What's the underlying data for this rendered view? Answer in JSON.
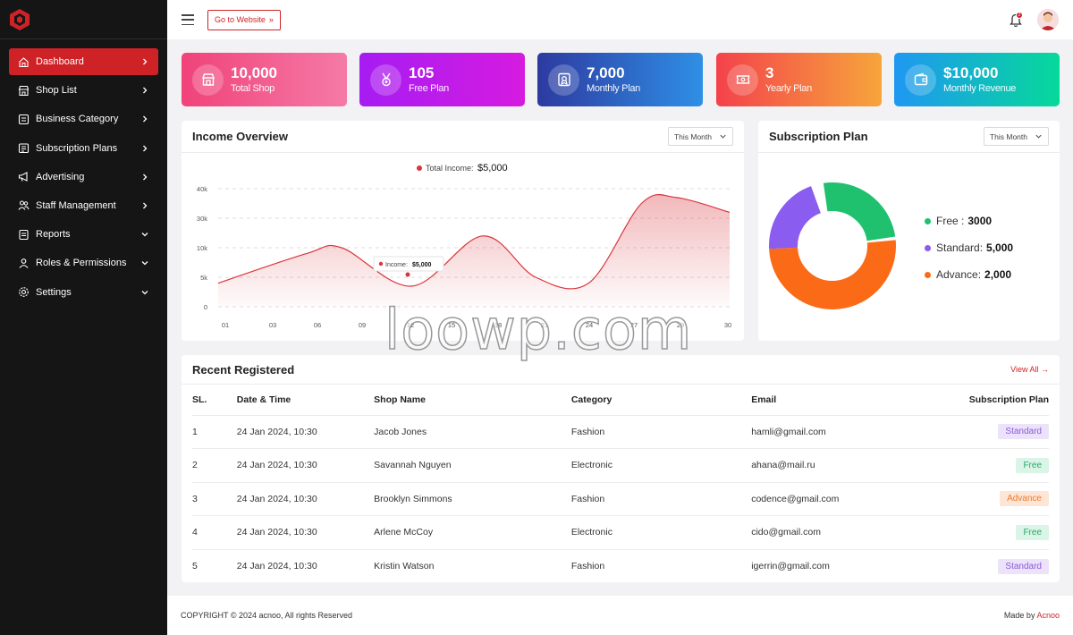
{
  "sidebar": {
    "items": [
      {
        "label": "Dashboard",
        "icon": "home-icon",
        "chevron": "right"
      },
      {
        "label": "Shop List",
        "icon": "shop-icon",
        "chevron": "right"
      },
      {
        "label": "Business Category",
        "icon": "category-icon",
        "chevron": "right"
      },
      {
        "label": "Subscription Plans",
        "icon": "subscription-icon",
        "chevron": "right"
      },
      {
        "label": "Advertising",
        "icon": "megaphone-icon",
        "chevron": "right"
      },
      {
        "label": "Staff Management",
        "icon": "staff-icon",
        "chevron": "right"
      },
      {
        "label": "Reports",
        "icon": "report-icon",
        "chevron": "down"
      },
      {
        "label": "Roles & Permissions",
        "icon": "roles-icon",
        "chevron": "down"
      },
      {
        "label": "Settings",
        "icon": "gear-icon",
        "chevron": "down"
      }
    ]
  },
  "header": {
    "goto_label": "Go to Website",
    "notification_count": "2"
  },
  "stats": [
    {
      "value": "10,000",
      "label": "Total Shop",
      "icon": "shop-icon",
      "gradient": [
        "#f0437a",
        "#f57aa6"
      ]
    },
    {
      "value": "105",
      "label": "Free Plan",
      "icon": "medal-icon",
      "gradient": [
        "#a61cf2",
        "#d61be0"
      ]
    },
    {
      "value": "7,000",
      "label": "Monthly Plan",
      "icon": "certificate-icon",
      "gradient": [
        "#2d3aa0",
        "#2f8fe6"
      ]
    },
    {
      "value": "3",
      "label": "Yearly Plan",
      "icon": "ticket-icon",
      "gradient": [
        "#f4424b",
        "#f6a53b"
      ]
    },
    {
      "value": "$10,000",
      "label": "Monthly Revenue",
      "icon": "wallet-icon",
      "gradient": [
        "#1f97f2",
        "#06d99a"
      ]
    }
  ],
  "income": {
    "title": "Income Overview",
    "period": "This Month",
    "legend_label": "Total Income:",
    "legend_value": "$5,000",
    "tooltip_label": "Income:",
    "tooltip_value": "$5,000"
  },
  "chart_data": {
    "type": "area",
    "title": "Income Overview",
    "x_ticks": [
      "01",
      "03",
      "06",
      "09",
      "12",
      "15",
      "18",
      "21",
      "24",
      "27",
      "29",
      "30"
    ],
    "y_ticks": [
      "0",
      "5k",
      "10k",
      "30k",
      "40k"
    ],
    "series": [
      {
        "name": "Total Income",
        "points": [
          [
            1,
            8
          ],
          [
            6,
            18
          ],
          [
            8,
            20
          ],
          [
            12,
            7
          ],
          [
            16,
            24
          ],
          [
            19,
            10
          ],
          [
            22,
            8
          ],
          [
            25,
            35
          ],
          [
            27,
            37
          ],
          [
            30,
            32
          ]
        ]
      }
    ],
    "ylim": [
      0,
      40
    ],
    "grid": true,
    "color": "#d9353c"
  },
  "subscription": {
    "title": "Subscription Plan",
    "period": "This Month",
    "legend": [
      {
        "label": "Free :",
        "value": "3000",
        "color": "#1fc06e"
      },
      {
        "label": "Standard:",
        "value": "5,000",
        "color": "#8a5cf0"
      },
      {
        "label": "Advance:",
        "value": "2,000",
        "color": "#fb6a16"
      }
    ]
  },
  "recent": {
    "title": "Recent Registered",
    "view_all": "View All",
    "columns": [
      "SL.",
      "Date & Time",
      "Shop Name",
      "Category",
      "Email",
      "Subscription Plan"
    ],
    "rows": [
      {
        "sl": "1",
        "date": "24 Jan 2024, 10:30",
        "shop": "Jacob Jones",
        "category": "Fashion",
        "email": "hamli@gmail.com",
        "plan": "Standard",
        "plan_type": "standard"
      },
      {
        "sl": "2",
        "date": "24 Jan 2024, 10:30",
        "shop": "Savannah Nguyen",
        "category": "Electronic",
        "email": "ahana@mail.ru",
        "plan": "Free",
        "plan_type": "free"
      },
      {
        "sl": "3",
        "date": "24 Jan 2024, 10:30",
        "shop": "Brooklyn Simmons",
        "category": "Fashion",
        "email": "codence@gmail.com",
        "plan": "Advance",
        "plan_type": "advance"
      },
      {
        "sl": "4",
        "date": "24 Jan 2024, 10:30",
        "shop": "Arlene McCoy",
        "category": "Electronic",
        "email": "cido@gmail.com",
        "plan": "Free",
        "plan_type": "free"
      },
      {
        "sl": "5",
        "date": "24 Jan 2024, 10:30",
        "shop": "Kristin Watson",
        "category": "Fashion",
        "email": "igerrin@gmail.com",
        "plan": "Standard",
        "plan_type": "standard"
      }
    ]
  },
  "footer": {
    "copyright": "COPYRIGHT © 2024 acnoo, All rights Reserved",
    "made_by": "Made by",
    "brand": "Acnoo"
  },
  "watermark": "loowp.com"
}
